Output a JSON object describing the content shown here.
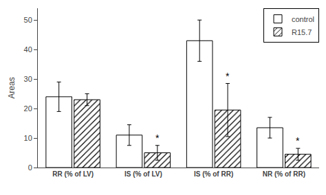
{
  "chart_data": {
    "type": "bar",
    "categories": [
      "RR (% of LV)",
      "IS (% of LV)",
      "IS (% of RR)",
      "NR (% of RR)"
    ],
    "series": [
      {
        "name": "control",
        "color": "#ffffff",
        "values": [
          24.0,
          11.0,
          43.0,
          13.5
        ],
        "errors": [
          5.0,
          3.5,
          7.0,
          3.5
        ]
      },
      {
        "name": "R15.7",
        "color": "#ffffff",
        "marker": "hatched",
        "values": [
          23.0,
          5.0,
          19.5,
          4.5
        ],
        "errors": [
          2.0,
          2.5,
          9.0,
          2.0
        ]
      }
    ],
    "ylabel": "Areas",
    "ylim": [
      0,
      54
    ],
    "yticks": [
      0,
      10,
      20,
      30,
      40,
      50
    ],
    "grid": false,
    "legend": "upper right",
    "annotations": [
      {
        "text": "*",
        "category": "IS (% of LV)",
        "series": "R15.7"
      },
      {
        "text": "*",
        "category": "IS (% of RR)",
        "series": "R15.7"
      },
      {
        "text": "*",
        "category": "NR (% of RR)",
        "series": "R15.7"
      }
    ]
  }
}
